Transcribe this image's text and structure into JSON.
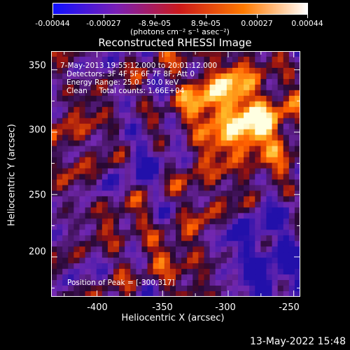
{
  "colorbar": {
    "tick_labels": [
      "-0.00044",
      "-0.00027",
      "-8.9e-05",
      "8.9e-05",
      "0.00027",
      "0.00044"
    ],
    "units": "(photons cm⁻² s⁻¹ asec⁻²)",
    "colors": [
      "#1010ff",
      "#7a1fb4",
      "#cc1a1a",
      "#ff7a00",
      "#ffffff"
    ]
  },
  "chart_data": {
    "type": "heatmap",
    "title": "Reconstructed RHESSI Image",
    "xlabel": "Heliocentric X (arcsec)",
    "ylabel": "Heliocentric Y (arcsec)",
    "xlim": [
      -435,
      -245
    ],
    "ylim": [
      168,
      365
    ],
    "xticks": [
      -400,
      -350,
      -300,
      -250
    ],
    "yticks": [
      200,
      250,
      300,
      350
    ],
    "colorbar_range": [
      -0.00044,
      0.00044
    ],
    "peak_position": [
      -300,
      317
    ],
    "annotations": [
      "7-May-2013 19:55:12.000 to 20:01:12.000",
      "Detectors: 3F 4F 5F 6F 7F 8F, Att 0",
      "Energy Range: 25.0 - 50.0 keV",
      "Clean     Total counts: 1.66E+04"
    ],
    "peak_label": "Position of Peak = [-300,317]"
  },
  "footer": {
    "date": "13-May-2022 15:48"
  }
}
